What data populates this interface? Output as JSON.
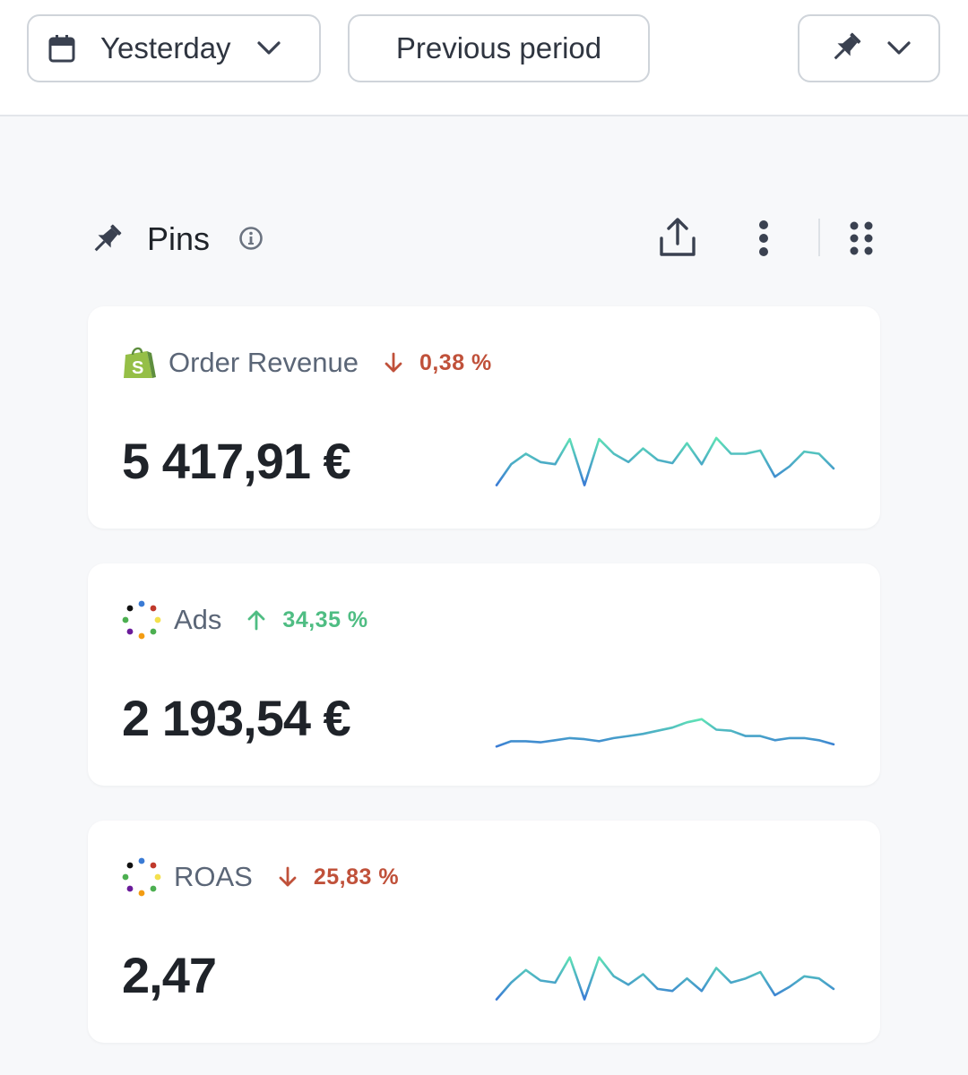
{
  "toolbar": {
    "date_label": "Yesterday",
    "compare_label": "Previous period"
  },
  "pins": {
    "title": "Pins"
  },
  "cards": [
    {
      "name": "Order Revenue",
      "source_icon": "shopify-bag-icon",
      "change": "0,38 %",
      "direction": "down",
      "value": "5 417,91 €",
      "trend": [
        44,
        64,
        74,
        66,
        64,
        88,
        44,
        88,
        74,
        66,
        79,
        68,
        65,
        84,
        64,
        89,
        74,
        74,
        77,
        52,
        62,
        76,
        74,
        60
      ]
    },
    {
      "name": "Ads",
      "source_icon": "multicolor-dots-icon",
      "change": "34,35 %",
      "direction": "up",
      "value": "2 193,54 €",
      "trend": [
        40,
        45,
        45,
        44,
        46,
        48,
        47,
        45,
        48,
        50,
        52,
        55,
        58,
        63,
        66,
        56,
        55,
        50,
        50,
        46,
        48,
        48,
        46,
        42
      ]
    },
    {
      "name": "ROAS",
      "source_icon": "multicolor-dots-icon",
      "change": "25,83 %",
      "direction": "down",
      "value": "2,47",
      "trend": [
        44,
        60,
        72,
        62,
        60,
        84,
        44,
        84,
        66,
        58,
        68,
        54,
        52,
        64,
        52,
        74,
        60,
        64,
        70,
        48,
        56,
        66,
        64,
        54
      ]
    }
  ],
  "colors": {
    "down": "#c0513a",
    "up": "#4fbd83",
    "spark_low": "#3a7bd5",
    "spark_high": "#5fe3b5"
  }
}
